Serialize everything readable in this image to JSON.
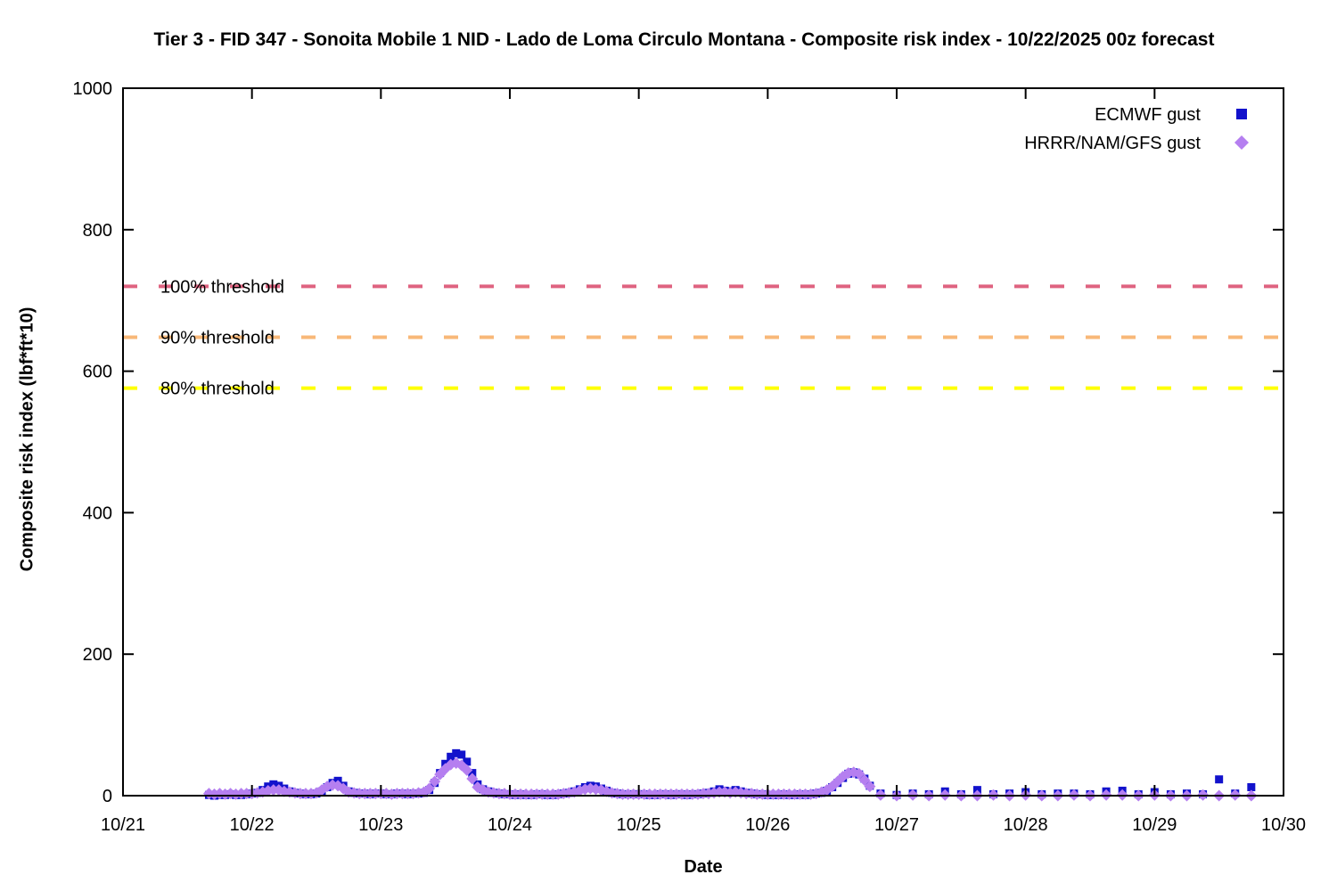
{
  "chart_data": {
    "type": "scatter",
    "title": "Tier 3 - FID 347 - Sonoita Mobile 1 NID - Lado de Loma Circulo Montana - Composite risk index - 10/22/2025 00z forecast",
    "xlabel": "Date",
    "ylabel": "Composite risk index (lbf*ft*10)",
    "grid": "off",
    "x_axis": {
      "tick_labels": [
        "10/21",
        "10/22",
        "10/23",
        "10/24",
        "10/25",
        "10/26",
        "10/27",
        "10/28",
        "10/29",
        "10/30"
      ],
      "days_span": 9
    },
    "y_axis": {
      "min": 0,
      "max": 1000,
      "ticks": [
        0,
        200,
        400,
        600,
        800,
        1000
      ]
    },
    "thresholds": [
      {
        "label": "100% threshold",
        "value": 720,
        "color": "#df6380"
      },
      {
        "label": "90% threshold",
        "value": 648,
        "color": "#f8b878"
      },
      {
        "label": "80% threshold",
        "value": 576,
        "color": "#ffff00"
      }
    ],
    "legend": {
      "position": "top-right",
      "entries": [
        "ECMWF gust",
        "HRRR/NAM/GFS gust"
      ]
    },
    "series": [
      {
        "name": "ECMWF gust",
        "marker": "square",
        "color": "#1212cc",
        "segments": [
          {
            "x_start_day": 0.6667,
            "x_step_day": 0.0416667,
            "values": [
              1,
              0,
              1,
              1,
              2,
              1,
              1,
              2,
              3,
              4,
              8,
              13,
              16,
              14,
              10,
              6,
              4,
              3,
              2,
              2,
              3,
              6,
              12,
              18,
              21,
              14,
              6,
              4,
              3,
              3,
              2,
              3,
              3,
              2,
              2,
              3,
              3,
              2,
              3,
              3,
              4,
              8,
              18,
              32,
              45,
              55,
              60,
              58,
              48,
              32,
              16,
              9,
              6,
              4,
              3,
              2,
              2,
              1,
              2,
              1,
              1,
              2,
              2,
              1,
              1,
              2,
              3,
              4,
              6,
              9,
              12,
              14,
              13,
              10,
              7,
              4,
              3,
              2,
              2,
              2,
              2,
              2,
              1,
              1,
              2,
              2,
              1,
              2,
              2,
              1,
              2,
              2,
              3,
              4,
              6,
              9,
              7,
              6,
              8,
              6,
              4,
              3,
              2,
              2,
              1,
              1,
              1,
              2,
              1,
              1,
              2,
              1,
              2,
              3,
              4,
              7,
              12,
              18,
              25,
              31,
              33,
              30,
              24,
              14
            ]
          },
          {
            "x_start_day": 5.875,
            "x_step_day": 0.125,
            "values": [
              3,
              1,
              3,
              2,
              6,
              2,
              8,
              2,
              3,
              5,
              2,
              3,
              3,
              2,
              6,
              7,
              2,
              5,
              2,
              3,
              2,
              23,
              3,
              12
            ]
          }
        ]
      },
      {
        "name": "HRRR/NAM/GFS gust",
        "marker": "diamond",
        "color": "#b57ff0",
        "segments": [
          {
            "x_start_day": 0.6667,
            "x_step_day": 0.0416667,
            "values": [
              3,
              2,
              3,
              2,
              3,
              2,
              3,
              3,
              3,
              4,
              5,
              7,
              8,
              8,
              6,
              5,
              4,
              3,
              3,
              3,
              4,
              8,
              13,
              15,
              14,
              10,
              5,
              4,
              3,
              3,
              3,
              3,
              3,
              3,
              2,
              3,
              3,
              3,
              3,
              4,
              5,
              10,
              20,
              30,
              38,
              44,
              46,
              43,
              36,
              24,
              12,
              8,
              5,
              4,
              3,
              3,
              2,
              2,
              2,
              2,
              2,
              2,
              2,
              2,
              2,
              2,
              3,
              4,
              5,
              7,
              9,
              10,
              9,
              8,
              6,
              4,
              3,
              2,
              2,
              2,
              2,
              2,
              2,
              2,
              2,
              2,
              2,
              2,
              2,
              2,
              2,
              2,
              3,
              3,
              4,
              5,
              5,
              4,
              5,
              4,
              3,
              3,
              2,
              2,
              2,
              2,
              2,
              2,
              2,
              2,
              2,
              2,
              2,
              3,
              5,
              8,
              13,
              20,
              27,
              32,
              33,
              31,
              22,
              13
            ]
          },
          {
            "x_start_day": 5.875,
            "x_step_day": 0.125,
            "values": [
              1,
              0,
              1,
              0,
              1,
              0,
              0,
              1,
              0,
              1,
              0,
              0,
              1,
              0,
              1,
              1,
              0,
              1,
              0,
              0,
              1,
              0,
              1,
              0
            ]
          }
        ]
      }
    ]
  }
}
